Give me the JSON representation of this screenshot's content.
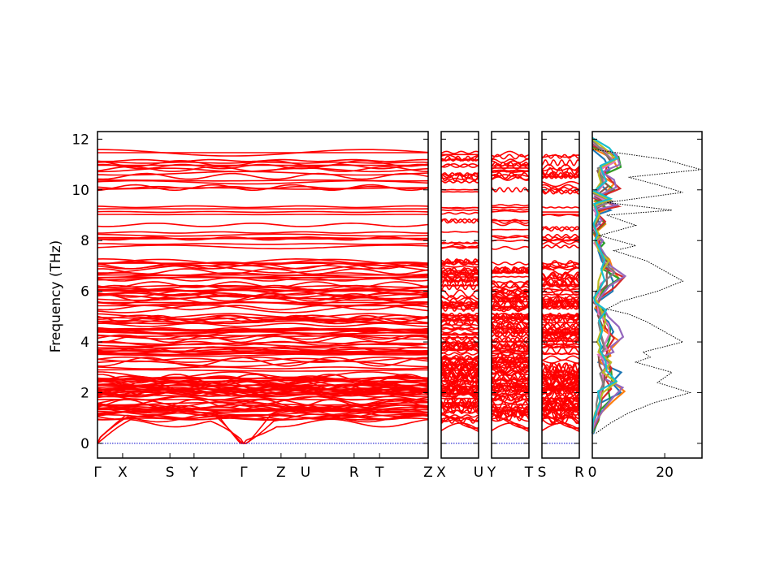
{
  "chart_data": {
    "type": "line",
    "title": "",
    "ylabel": "Frequency (THz)",
    "ylim": [
      -0.58,
      12.3
    ],
    "yticks": [
      0,
      2,
      4,
      6,
      8,
      10,
      12
    ],
    "band_color": "#ff0000",
    "zero_line_color": "#0000cc",
    "panels": [
      {
        "labels": [
          "Γ",
          "X",
          "S",
          "Y",
          "Γ",
          "Z",
          "U",
          "R",
          "T",
          "Z"
        ],
        "positions": [
          0,
          0.076,
          0.219,
          0.292,
          0.442,
          0.555,
          0.629,
          0.776,
          0.853,
          1.0
        ]
      },
      {
        "labels": [
          "X",
          "U"
        ],
        "positions": [
          0,
          1
        ]
      },
      {
        "labels": [
          "Y",
          "T"
        ],
        "positions": [
          0,
          1
        ]
      },
      {
        "labels": [
          "S",
          "R"
        ],
        "positions": [
          0,
          1
        ]
      }
    ],
    "band_clusters": [
      {
        "from": 0.9,
        "to": 3.4,
        "count": 60
      },
      {
        "from": 3.5,
        "to": 5.1,
        "count": 34
      },
      {
        "from": 5.3,
        "to": 7.2,
        "count": 34
      },
      {
        "from": 7.7,
        "to": 8.8,
        "count": 8
      },
      {
        "from": 9.0,
        "to": 9.4,
        "count": 4
      },
      {
        "from": 9.9,
        "to": 11.5,
        "count": 16
      }
    ],
    "dos": {
      "xlim": [
        0,
        30.3
      ],
      "xticks": [
        0,
        20
      ],
      "total_color": "#000000",
      "total": [
        [
          0.4,
          1
        ],
        [
          0.8,
          5
        ],
        [
          1.2,
          10
        ],
        [
          1.6,
          17
        ],
        [
          2.0,
          27
        ],
        [
          2.4,
          18
        ],
        [
          2.8,
          22
        ],
        [
          3.2,
          12
        ],
        [
          3.4,
          16
        ],
        [
          3.6,
          14
        ],
        [
          4.0,
          25
        ],
        [
          4.4,
          20
        ],
        [
          4.8,
          15
        ],
        [
          5.1,
          10
        ],
        [
          5.3,
          4
        ],
        [
          5.6,
          8
        ],
        [
          6.0,
          18
        ],
        [
          6.4,
          25
        ],
        [
          6.8,
          20
        ],
        [
          7.2,
          15
        ],
        [
          7.6,
          6
        ],
        [
          7.8,
          12
        ],
        [
          8.2,
          2
        ],
        [
          8.6,
          12
        ],
        [
          9.0,
          4
        ],
        [
          9.2,
          22
        ],
        [
          9.5,
          4
        ],
        [
          9.9,
          25
        ],
        [
          10.2,
          18
        ],
        [
          10.5,
          10
        ],
        [
          10.8,
          30
        ],
        [
          11.2,
          20
        ],
        [
          11.6,
          0
        ]
      ],
      "projected_colors": [
        "#1f77b4",
        "#ff7f0e",
        "#2ca02c",
        "#d62728",
        "#9467bd",
        "#8c564b",
        "#e377c2",
        "#7f7f7f",
        "#bcbd22",
        "#17becf"
      ]
    }
  }
}
